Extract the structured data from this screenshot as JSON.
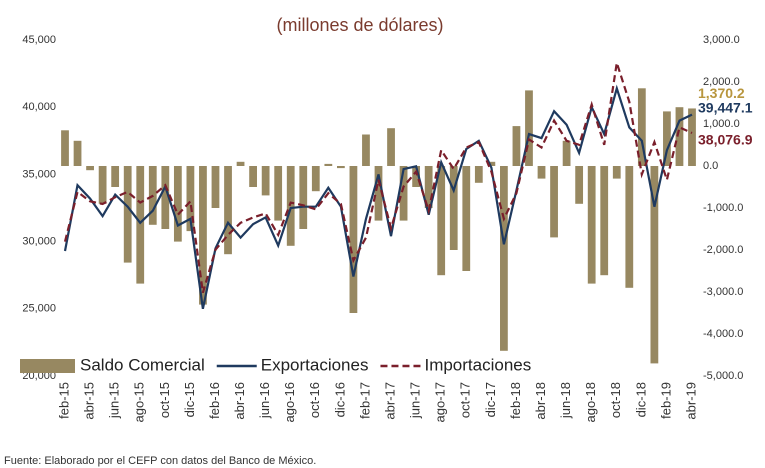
{
  "chart_data": {
    "type": "combo",
    "title": "(millones de dólares)",
    "source": "Fuente: Elaborado por el CEFP con datos del Banco de México.",
    "categories": [
      "feb-15",
      null,
      "abr-15",
      null,
      "jun-15",
      null,
      "ago-15",
      null,
      "oct-15",
      null,
      "dic-15",
      null,
      "feb-16",
      null,
      "abr-16",
      null,
      "jun-16",
      null,
      "ago-16",
      null,
      "oct-16",
      null,
      "dic-16",
      null,
      "feb-17",
      null,
      "abr-17",
      null,
      "jun-17",
      null,
      "ago-17",
      null,
      "oct-17",
      null,
      "dic-17",
      null,
      "feb-18",
      null,
      "abr-18",
      null,
      "jun-18",
      null,
      "ago-18",
      null,
      "oct-18",
      null,
      "dic-18",
      null,
      "feb-19",
      null,
      "abr-19"
    ],
    "ylim": [
      20000,
      45000
    ],
    "yticks": [
      {
        "value": 20000,
        "label": "20,000"
      },
      {
        "value": 25000,
        "label": "25,000"
      },
      {
        "value": 30000,
        "label": "30,000"
      },
      {
        "value": 35000,
        "label": "35,000"
      },
      {
        "value": 40000,
        "label": "40,000"
      },
      {
        "value": 45000,
        "label": "45,000"
      }
    ],
    "y2lim": [
      -5000,
      3000
    ],
    "y2ticks": [
      {
        "value": -5000,
        "label": "-5,000.0"
      },
      {
        "value": -4000,
        "label": "-4,000.0"
      },
      {
        "value": -3000,
        "label": "-3,000.0"
      },
      {
        "value": -2000,
        "label": "-2,000.0"
      },
      {
        "value": -1000,
        "label": "-1,000.0"
      },
      {
        "value": 0,
        "label": "0.0"
      },
      {
        "value": 1000,
        "label": "1,000.0"
      },
      {
        "value": 2000,
        "label": "2,000.0"
      },
      {
        "value": 3000,
        "label": "3,000.0"
      }
    ],
    "grid": false,
    "series": [
      {
        "name": "Saldo Comercial",
        "type": "bar",
        "axis": "y2",
        "color": "#978861",
        "label_color": "#b8963e",
        "values": [
          850,
          600,
          -100,
          -900,
          -500,
          -2300,
          -2800,
          -1400,
          -1500,
          -1800,
          -1550,
          -3300,
          -1000,
          -2100,
          100,
          -500,
          -700,
          -1300,
          -1900,
          -1500,
          -600,
          50,
          -50,
          -3500,
          750,
          -1300,
          900,
          -1300,
          -500,
          -1000,
          -2600,
          -2000,
          -2500,
          -400,
          100,
          -4400,
          950,
          1800,
          -300,
          -1700,
          600,
          -900,
          -2800,
          -2600,
          -300,
          -2900,
          1850,
          -4700,
          1300,
          1400,
          1370.2
        ],
        "value_labels": [
          null,
          null,
          null,
          null,
          null,
          null,
          null,
          null,
          null,
          null,
          null,
          null,
          null,
          null,
          null,
          null,
          null,
          null,
          null,
          null,
          null,
          null,
          null,
          null,
          null,
          null,
          null,
          null,
          null,
          null,
          null,
          null,
          null,
          null,
          null,
          null,
          null,
          null,
          null,
          null,
          null,
          null,
          null,
          null,
          null,
          null,
          null,
          null,
          null,
          null,
          "1,370.2"
        ]
      },
      {
        "name": "Exportaciones",
        "type": "line",
        "color": "#1f3a5f",
        "label_color": "#1f3a5f",
        "values": [
          29300,
          34200,
          33200,
          31900,
          33500,
          32600,
          31400,
          32300,
          34100,
          31200,
          31700,
          25000,
          29500,
          31400,
          30300,
          31300,
          31800,
          29700,
          32500,
          32600,
          32600,
          34000,
          32600,
          27400,
          31700,
          35000,
          30400,
          35400,
          35600,
          32000,
          35900,
          33800,
          36900,
          37500,
          35500,
          29800,
          33800,
          38000,
          37700,
          39700,
          38700,
          36600,
          40000,
          38000,
          41400,
          38500,
          37500,
          32600,
          36800,
          39000,
          39447.1
        ],
        "value_labels": [
          null,
          null,
          null,
          null,
          null,
          null,
          null,
          null,
          null,
          null,
          null,
          null,
          null,
          null,
          null,
          null,
          null,
          null,
          null,
          null,
          null,
          null,
          null,
          null,
          null,
          null,
          null,
          null,
          null,
          null,
          null,
          null,
          null,
          null,
          null,
          null,
          null,
          null,
          null,
          null,
          null,
          null,
          null,
          null,
          null,
          null,
          null,
          null,
          null,
          null,
          "39,447.1"
        ]
      },
      {
        "name": "Importaciones",
        "type": "line",
        "line_style": "dashed",
        "color": "#7a1f2b",
        "label_color": "#7a1f2b",
        "values": [
          30000,
          33700,
          33000,
          32800,
          33300,
          33700,
          32900,
          33400,
          34200,
          32000,
          33000,
          26200,
          29400,
          30500,
          31400,
          31800,
          32100,
          30500,
          32900,
          32700,
          32400,
          33600,
          32800,
          28600,
          30300,
          34600,
          31000,
          34100,
          35200,
          32300,
          36800,
          35400,
          37000,
          37400,
          35200,
          31700,
          33600,
          37600,
          37000,
          39000,
          37500,
          37200,
          40200,
          37200,
          43300,
          40400,
          35000,
          37400,
          34600,
          38500,
          38076.9
        ],
        "value_labels": [
          null,
          null,
          null,
          null,
          null,
          null,
          null,
          null,
          null,
          null,
          null,
          null,
          null,
          null,
          null,
          null,
          null,
          null,
          null,
          null,
          null,
          null,
          null,
          null,
          null,
          null,
          null,
          null,
          null,
          null,
          null,
          null,
          null,
          null,
          null,
          null,
          null,
          null,
          null,
          null,
          null,
          null,
          null,
          null,
          null,
          null,
          null,
          null,
          null,
          null,
          "38,076.9"
        ]
      }
    ]
  }
}
